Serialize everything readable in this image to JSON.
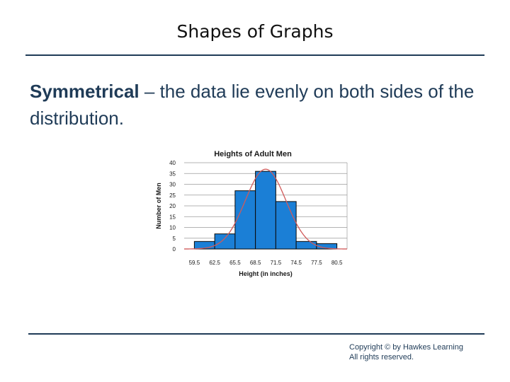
{
  "slide": {
    "title": "Shapes of Graphs",
    "term": "Symmetrical",
    "definition": " – the data lie evenly on both sides of the distribution.",
    "copyright_line1": "Copyright © by Hawkes Learning",
    "copyright_line2": "All rights reserved."
  },
  "colors": {
    "text": "#1f3b57",
    "rule": "#1f3b57",
    "bar_fill": "#1b7fd6",
    "bar_stroke": "#0a0a0a",
    "curve": "#d05a5a",
    "grid": "#9a9a9a"
  },
  "chart_data": {
    "type": "bar",
    "title": "Heights of Adult Men",
    "xlabel": "Height (in inches)",
    "ylabel": "Number of Men",
    "boundaries": [
      59.5,
      62.5,
      65.5,
      68.5,
      71.5,
      74.5,
      77.5,
      80.5
    ],
    "tick_labels": [
      "59.5",
      "62.5",
      "65.5",
      "68.5",
      "71.5",
      "74.5",
      "77.5",
      "80.5"
    ],
    "values": [
      3.5,
      7,
      27,
      36,
      22,
      3.5,
      2.5
    ],
    "ylim": [
      0,
      40
    ],
    "yticks": [
      0,
      5,
      10,
      15,
      20,
      25,
      30,
      35,
      40
    ],
    "grid": true,
    "overlay_curve": "normal"
  }
}
